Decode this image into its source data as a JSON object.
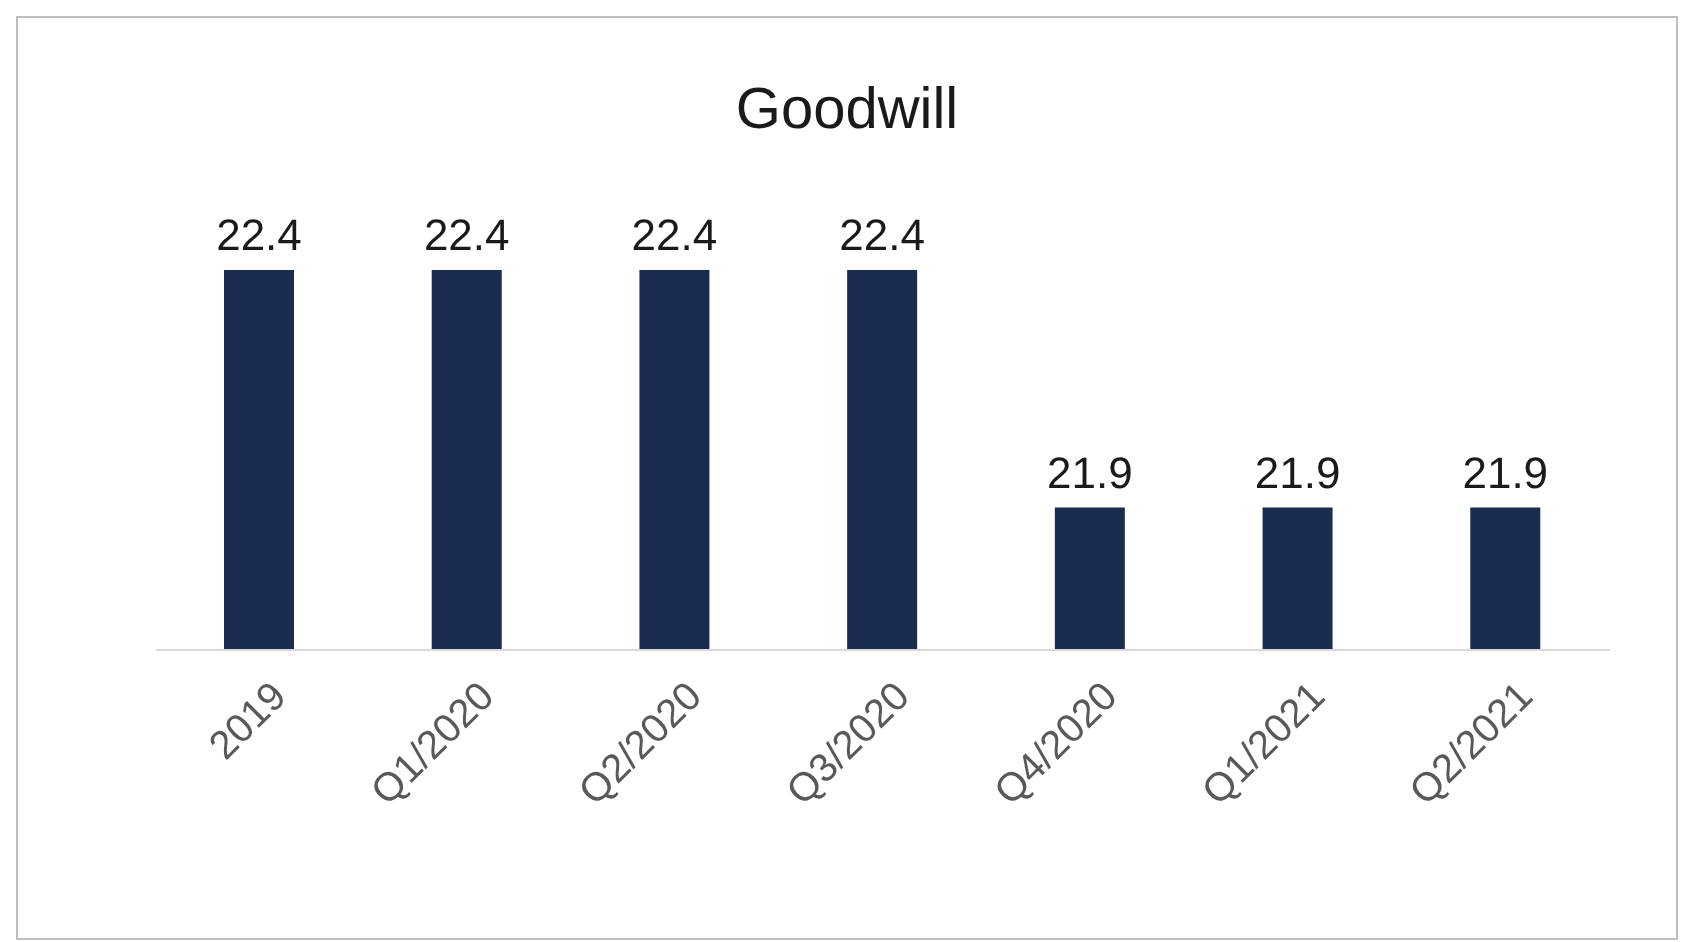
{
  "chart_data": {
    "type": "bar",
    "title": "Goodwill",
    "categories": [
      "2019",
      "Q1/2020",
      "Q2/2020",
      "Q3/2020",
      "Q4/2020",
      "Q1/2021",
      "Q2/2021"
    ],
    "values": [
      22.4,
      22.4,
      22.4,
      22.4,
      21.9,
      21.9,
      21.9
    ],
    "color": "#1b2d4f",
    "ylim": [
      21.6,
      22.4
    ],
    "tick_labels": "x",
    "data_labels": true,
    "grid": false,
    "legend": false
  }
}
